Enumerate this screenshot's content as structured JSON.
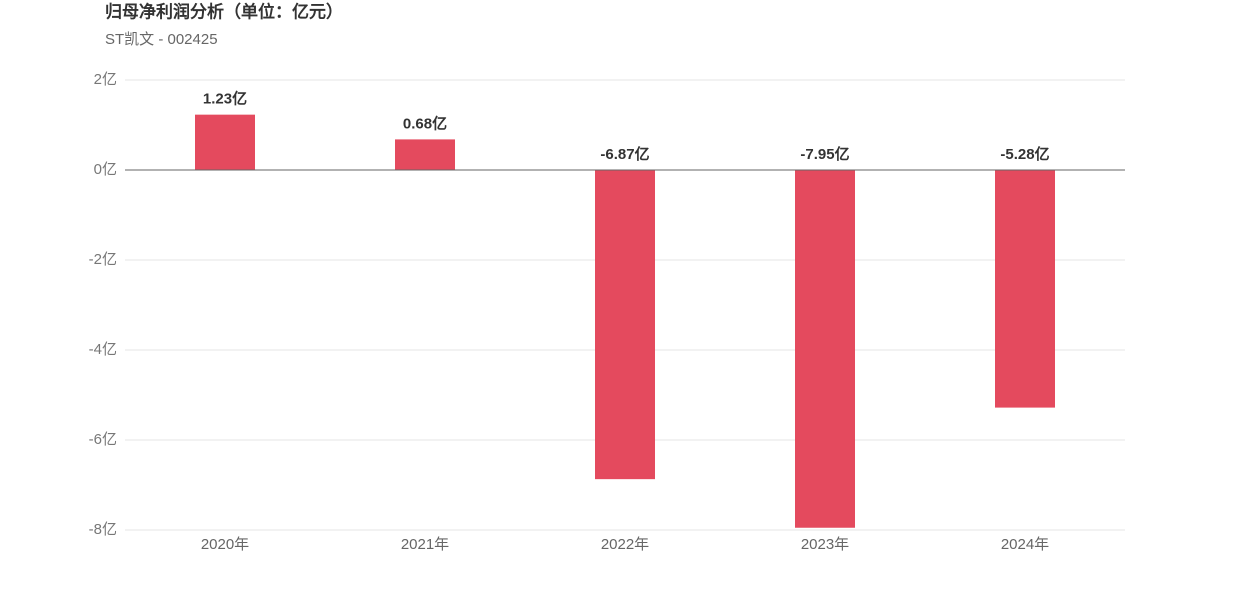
{
  "chart_data": {
    "type": "bar",
    "title": "归母净利润分析（单位：亿元）",
    "subtitle": "ST凯文 - 002425",
    "categories": [
      "2020年",
      "2021年",
      "2022年",
      "2023年",
      "2024年"
    ],
    "values": [
      1.23,
      0.68,
      -6.87,
      -7.95,
      -5.28
    ],
    "value_labels": [
      "1.23亿",
      "0.68亿",
      "-6.87亿",
      "-7.95亿",
      "-5.28亿"
    ],
    "color": "#e44a5e",
    "ylim": [
      -8,
      2
    ],
    "yticks": [
      {
        "value": -8,
        "label": "-8亿"
      },
      {
        "value": -6,
        "label": "-6亿"
      },
      {
        "value": -4,
        "label": "-4亿"
      },
      {
        "value": -2,
        "label": "-2亿"
      },
      {
        "value": 0,
        "label": "0亿"
      },
      {
        "value": 2,
        "label": "2亿"
      }
    ],
    "grid": true
  }
}
